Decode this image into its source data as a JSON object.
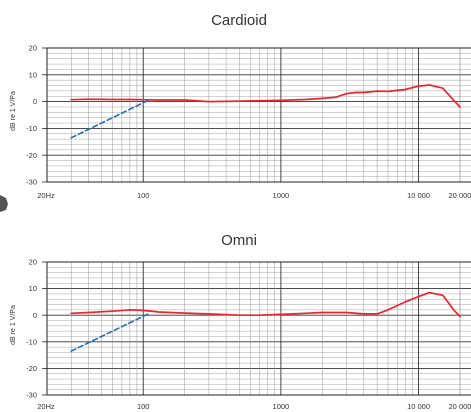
{
  "chart_data": [
    {
      "type": "line",
      "title": "Cardioid",
      "ylabel": "dB re 1 V/Pa",
      "xlabel": "",
      "x_scale": "log",
      "xlim": [
        20,
        20000
      ],
      "ylim": [
        -30,
        20
      ],
      "y_ticks": [
        "20",
        "10",
        "0",
        "-10",
        "-20",
        "-30"
      ],
      "x_tick_labels": [
        {
          "value": 20,
          "label": "20Hz"
        },
        {
          "value": 100,
          "label": "100"
        },
        {
          "value": 1000,
          "label": "1000"
        },
        {
          "value": 10000,
          "label": "10 000"
        },
        {
          "value": 20000,
          "label": "20 000"
        }
      ],
      "grid": true,
      "series": [
        {
          "color": "#e8262d",
          "style": "solid",
          "x": [
            30,
            40,
            60,
            80,
            100,
            130,
            200,
            300,
            500,
            1000,
            1500,
            2000,
            2500,
            3000,
            3500,
            4000,
            5000,
            6000,
            8000,
            10000,
            12000,
            15000,
            18000,
            20000
          ],
          "y": [
            0.7,
            0.9,
            0.8,
            0.8,
            0.7,
            0.6,
            0.6,
            0.0,
            0.2,
            0.5,
            0.8,
            1.2,
            1.6,
            3.0,
            3.4,
            3.4,
            3.9,
            3.8,
            4.5,
            5.8,
            6.2,
            5.0,
            0.5,
            -2.0
          ]
        },
        {
          "color": "#1f6fb8",
          "style": "dashed",
          "x": [
            30,
            110
          ],
          "y": [
            -13.5,
            0.6
          ]
        }
      ]
    },
    {
      "type": "line",
      "title": "Omni",
      "ylabel": "dB re 1 V/Pa",
      "xlabel": "",
      "x_scale": "log",
      "xlim": [
        20,
        20000
      ],
      "ylim": [
        -30,
        20
      ],
      "y_ticks": [
        "20",
        "10",
        "0",
        "-10",
        "-20",
        "-30"
      ],
      "x_tick_labels": [
        {
          "value": 20,
          "label": "20Hz"
        },
        {
          "value": 100,
          "label": "100"
        },
        {
          "value": 1000,
          "label": "1000"
        },
        {
          "value": 10000,
          "label": "10 000"
        },
        {
          "value": 20000,
          "label": "20 000"
        }
      ],
      "grid": true,
      "series": [
        {
          "color": "#e8262d",
          "style": "solid",
          "x": [
            30,
            40,
            60,
            80,
            100,
            130,
            200,
            300,
            500,
            700,
            1000,
            1500,
            2000,
            3000,
            4000,
            5000,
            6000,
            8000,
            10000,
            12000,
            15000,
            18000,
            20000
          ],
          "y": [
            0.7,
            1.0,
            1.5,
            2.0,
            1.8,
            1.2,
            0.8,
            0.5,
            0.0,
            0.0,
            0.3,
            0.7,
            1.0,
            1.0,
            0.5,
            0.5,
            2.0,
            5.0,
            7.0,
            8.5,
            7.5,
            2.0,
            -0.5
          ]
        },
        {
          "color": "#1f6fb8",
          "style": "dashed",
          "x": [
            30,
            110
          ],
          "y": [
            -13.5,
            0.6
          ]
        }
      ]
    }
  ]
}
